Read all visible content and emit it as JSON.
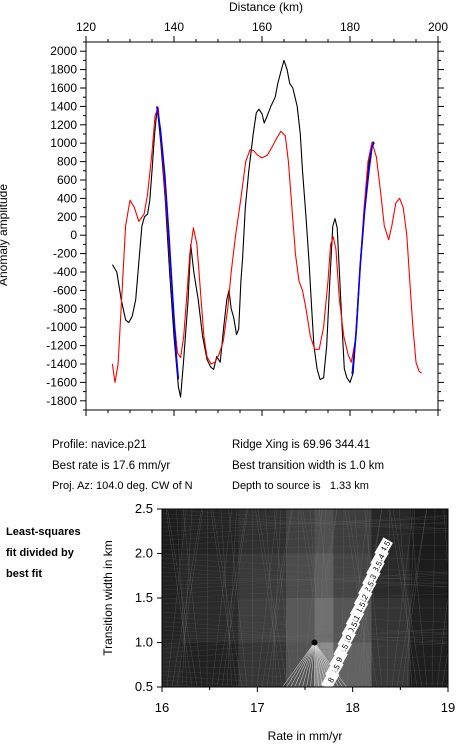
{
  "chart_data": [
    {
      "type": "line",
      "xlabel_top": "Distance (km)",
      "ylabel": "Anomaly amplitude",
      "xlim": [
        120,
        200
      ],
      "ylim": [
        -1900,
        2100
      ],
      "x_ticks": [
        120,
        140,
        160,
        180,
        200
      ],
      "y_ticks": [
        2000,
        1800,
        1600,
        1400,
        1200,
        1000,
        800,
        600,
        400,
        200,
        0,
        -200,
        -400,
        -600,
        -800,
        -1000,
        -1200,
        -1400,
        -1600,
        -1800
      ],
      "series": [
        {
          "color": "#000000",
          "points": [
            [
              126,
              -320
            ],
            [
              127,
              -400
            ],
            [
              128,
              -700
            ],
            [
              129,
              -920
            ],
            [
              129.7,
              -950
            ],
            [
              130.5,
              -880
            ],
            [
              131.3,
              -700
            ],
            [
              132,
              -300
            ],
            [
              132.7,
              100
            ],
            [
              133.3,
              200
            ],
            [
              134,
              230
            ],
            [
              134.5,
              380
            ],
            [
              135,
              700
            ],
            [
              135.6,
              1100
            ],
            [
              136.2,
              1390
            ],
            [
              137,
              1000
            ],
            [
              138,
              400
            ],
            [
              139,
              -400
            ],
            [
              140,
              -1100
            ],
            [
              141,
              -1650
            ],
            [
              141.5,
              -1760
            ],
            [
              142.2,
              -1350
            ],
            [
              143.2,
              -700
            ],
            [
              143.8,
              -100
            ],
            [
              144.5,
              -400
            ],
            [
              145.5,
              -700
            ],
            [
              146.5,
              -1100
            ],
            [
              147.5,
              -1350
            ],
            [
              148.3,
              -1430
            ],
            [
              149,
              -1460
            ],
            [
              149.7,
              -1320
            ],
            [
              150.5,
              -1380
            ],
            [
              151.3,
              -1000
            ],
            [
              152,
              -700
            ],
            [
              152.5,
              -600
            ],
            [
              153,
              -800
            ],
            [
              153.6,
              -900
            ],
            [
              154.2,
              -1080
            ],
            [
              154.7,
              -1020
            ],
            [
              155.2,
              -500
            ],
            [
              155.6,
              -250
            ],
            [
              156.2,
              300
            ],
            [
              157,
              700
            ],
            [
              158,
              1100
            ],
            [
              158.7,
              1330
            ],
            [
              159.3,
              1370
            ],
            [
              160,
              1320
            ],
            [
              160.5,
              1220
            ],
            [
              161.2,
              1300
            ],
            [
              162,
              1400
            ],
            [
              163,
              1500
            ],
            [
              163.6,
              1650
            ],
            [
              164.4,
              1800
            ],
            [
              165,
              1900
            ],
            [
              165.7,
              1800
            ],
            [
              166.3,
              1650
            ],
            [
              167,
              1600
            ],
            [
              168,
              1400
            ],
            [
              168.7,
              1100
            ],
            [
              169.2,
              700
            ],
            [
              170,
              200
            ],
            [
              170.7,
              -300
            ],
            [
              171.3,
              -800
            ],
            [
              171.8,
              -1200
            ],
            [
              172.5,
              -1450
            ],
            [
              173.2,
              -1570
            ],
            [
              174,
              -1550
            ],
            [
              174.7,
              -1200
            ],
            [
              175.4,
              -500
            ],
            [
              176.1,
              100
            ],
            [
              176.6,
              180
            ],
            [
              177.1,
              80
            ],
            [
              177.6,
              -400
            ],
            [
              178.2,
              -1000
            ],
            [
              178.7,
              -1450
            ],
            [
              179.3,
              -1550
            ],
            [
              180,
              -1600
            ],
            [
              180.7,
              -1500
            ],
            [
              181.5,
              -1000
            ],
            [
              182.5,
              -200
            ],
            [
              183.5,
              400
            ],
            [
              184.4,
              850
            ],
            [
              185.3,
              1020
            ]
          ]
        },
        {
          "color": "#ff0000",
          "points": [
            [
              126,
              -1400
            ],
            [
              126.6,
              -1600
            ],
            [
              127.3,
              -1400
            ],
            [
              128.2,
              -600
            ],
            [
              129,
              100
            ],
            [
              130,
              380
            ],
            [
              131,
              300
            ],
            [
              132,
              150
            ],
            [
              133.2,
              230
            ],
            [
              134,
              450
            ],
            [
              135,
              900
            ],
            [
              135.7,
              1300
            ],
            [
              136.4,
              1390
            ],
            [
              137.3,
              900
            ],
            [
              138.4,
              200
            ],
            [
              139.4,
              -500
            ],
            [
              140.2,
              -1000
            ],
            [
              140.8,
              -1280
            ],
            [
              141.5,
              -1330
            ],
            [
              142.2,
              -1100
            ],
            [
              143,
              -600
            ],
            [
              143.6,
              -200
            ],
            [
              144.4,
              80
            ],
            [
              145.2,
              -100
            ],
            [
              146,
              -600
            ],
            [
              146.8,
              -1100
            ],
            [
              147.5,
              -1320
            ],
            [
              148.4,
              -1400
            ],
            [
              149.3,
              -1380
            ],
            [
              150.2,
              -1300
            ],
            [
              151.2,
              -1150
            ],
            [
              152.2,
              -800
            ],
            [
              153,
              -400
            ],
            [
              154,
              0
            ],
            [
              155.2,
              400
            ],
            [
              156.3,
              800
            ],
            [
              157.3,
              930
            ],
            [
              158.1,
              920
            ],
            [
              159,
              870
            ],
            [
              160,
              840
            ],
            [
              161.2,
              870
            ],
            [
              162.3,
              960
            ],
            [
              163.3,
              1050
            ],
            [
              164.3,
              1130
            ],
            [
              165.3,
              1080
            ],
            [
              166,
              800
            ],
            [
              166.8,
              300
            ],
            [
              167.6,
              -200
            ],
            [
              168.4,
              -500
            ],
            [
              169.2,
              -600
            ],
            [
              170,
              -800
            ],
            [
              171,
              -1100
            ],
            [
              172,
              -1240
            ],
            [
              173,
              -1240
            ],
            [
              174,
              -1000
            ],
            [
              175,
              -500
            ],
            [
              175.6,
              -100
            ],
            [
              176.2,
              -20
            ],
            [
              176.8,
              -150
            ],
            [
              177.6,
              -700
            ],
            [
              178.6,
              -1100
            ],
            [
              179.6,
              -1300
            ],
            [
              180.3,
              -1380
            ],
            [
              181.2,
              -1150
            ],
            [
              182.2,
              -400
            ],
            [
              183.2,
              300
            ],
            [
              184.1,
              800
            ],
            [
              185,
              1010
            ],
            [
              186,
              850
            ],
            [
              187,
              450
            ],
            [
              187.8,
              100
            ],
            [
              188.8,
              -50
            ],
            [
              189.5,
              100
            ],
            [
              190.4,
              350
            ],
            [
              191.3,
              400
            ],
            [
              192.1,
              300
            ],
            [
              192.9,
              0
            ],
            [
              193.6,
              -500
            ],
            [
              194.3,
              -1000
            ],
            [
              195,
              -1380
            ],
            [
              195.7,
              -1480
            ],
            [
              196.3,
              -1500
            ]
          ]
        },
        {
          "color": "#0000ff",
          "points": [
            [
              136.1,
              1400
            ],
            [
              136.9,
              1150
            ],
            [
              137.9,
              650
            ],
            [
              138.9,
              -50
            ],
            [
              139.8,
              -750
            ],
            [
              140.5,
              -1300
            ],
            [
              141,
              -1570
            ]
          ]
        },
        {
          "color": "#0000ff",
          "points": [
            [
              180.5,
              -1510
            ],
            [
              181.4,
              -1050
            ],
            [
              182.3,
              -350
            ],
            [
              183.3,
              250
            ],
            [
              184.3,
              700
            ],
            [
              185,
              960
            ],
            [
              185.5,
              1010
            ]
          ]
        }
      ]
    },
    {
      "type": "heatmap",
      "title": "Least-squares fit divided by best fit",
      "xlabel": "Rate in mm/yr",
      "ylabel": "Transition width in km",
      "xlim": [
        16,
        19
      ],
      "ylim": [
        0.5,
        2.5
      ],
      "x_ticks": [
        16,
        17,
        18,
        19
      ],
      "y_ticks": [
        0.5,
        1.0,
        1.5,
        2.0,
        2.5
      ],
      "best_fit": {
        "rate": 17.6,
        "width": 1.0
      },
      "contour_labels": [
        "14.5",
        "14",
        "13.5",
        "13",
        "12.5",
        "12",
        "11.5",
        "11",
        "10.5",
        "10",
        "9.5",
        "9",
        "8.5",
        "8"
      ]
    }
  ],
  "info": {
    "profile": "Profile: navice.p21",
    "best_rate": "Best rate is 17.6 mm/yr",
    "proj_az": "Proj. Az: 104.0 deg. CW of N",
    "ridge_xing": "Ridge Xing is 69.96 344.41",
    "best_transition": "Best transition width is 1.0 km",
    "depth": "Depth to source is   1.33 km"
  }
}
